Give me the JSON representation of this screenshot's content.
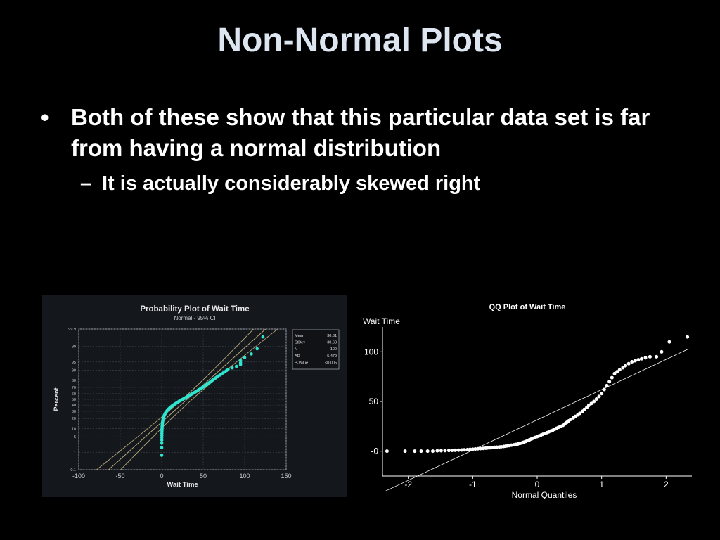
{
  "slide": {
    "title": "Non-Normal Plots",
    "bullet_marker": "•",
    "sub_marker": "–",
    "bullet": "Both of these show that this particular data set is far from having a normal distribution",
    "sub_bullet": "It is actually considerably skewed right"
  },
  "colors": {
    "background": "#000000",
    "title": "#dde6f0",
    "prob_panel_bg": "#14171c",
    "prob_points": "#2ee6d0",
    "prob_ci_lines": "#b8a978",
    "qq_points": "#ffffff"
  },
  "chart_data": [
    {
      "type": "scatter",
      "title": "Probability Plot of Wait Time",
      "subtitle": "Normal - 95% CI",
      "xlabel": "Wait Time",
      "ylabel": "Percent",
      "xlim": [
        -100,
        150
      ],
      "x_ticks": [
        -100,
        -50,
        0,
        50,
        100,
        150
      ],
      "y_ticks": [
        "0.1",
        "1",
        "5",
        "10",
        "20",
        "30",
        "40",
        "50",
        "60",
        "70",
        "80",
        "90",
        "95",
        "99",
        "99.9"
      ],
      "y_scale": "normal-probability",
      "grid": true,
      "stats": {
        "rows": [
          [
            "Mean",
            "30.61"
          ],
          [
            "StDev",
            "30.60"
          ],
          [
            "N",
            "100"
          ],
          [
            "AD",
            "5.479"
          ],
          [
            "P-Value",
            "<0.005"
          ]
        ]
      },
      "fit_line": {
        "mean": 30.61,
        "stdev": 30.6
      },
      "points": [
        [
          0.0,
          0.7
        ],
        [
          0.0,
          1.7
        ],
        [
          0.1,
          2.7
        ],
        [
          0.1,
          3.7
        ],
        [
          0.1,
          4.7
        ],
        [
          0.2,
          5.7
        ],
        [
          0.2,
          6.7
        ],
        [
          0.3,
          7.7
        ],
        [
          0.3,
          8.7
        ],
        [
          0.4,
          9.7
        ],
        [
          0.5,
          10.7
        ],
        [
          0.5,
          11.7
        ],
        [
          0.6,
          12.7
        ],
        [
          0.8,
          13.7
        ],
        [
          0.9,
          14.7
        ],
        [
          1.0,
          15.7
        ],
        [
          1.2,
          16.7
        ],
        [
          1.4,
          17.7
        ],
        [
          1.6,
          18.7
        ],
        [
          1.8,
          19.7
        ],
        [
          2.1,
          20.7
        ],
        [
          2.4,
          21.7
        ],
        [
          2.7,
          22.7
        ],
        [
          3.0,
          23.7
        ],
        [
          3.4,
          24.7
        ],
        [
          3.8,
          25.7
        ],
        [
          4.2,
          26.7
        ],
        [
          4.7,
          27.7
        ],
        [
          5.2,
          28.7
        ],
        [
          5.8,
          29.7
        ],
        [
          6.4,
          30.7
        ],
        [
          7.0,
          31.7
        ],
        [
          7.7,
          32.7
        ],
        [
          8.4,
          33.7
        ],
        [
          9.2,
          34.7
        ],
        [
          10.0,
          35.7
        ],
        [
          10.8,
          36.7
        ],
        [
          11.7,
          37.7
        ],
        [
          12.6,
          38.7
        ],
        [
          13.6,
          39.7
        ],
        [
          14.6,
          40.7
        ],
        [
          15.6,
          41.7
        ],
        [
          16.7,
          42.7
        ],
        [
          17.8,
          43.7
        ],
        [
          18.9,
          44.7
        ],
        [
          20.0,
          45.7
        ],
        [
          21.2,
          46.7
        ],
        [
          22.4,
          47.7
        ],
        [
          23.6,
          48.7
        ],
        [
          24.8,
          49.7
        ],
        [
          26.0,
          50.7
        ],
        [
          27.2,
          51.7
        ],
        [
          28.4,
          52.7
        ],
        [
          29.6,
          53.7
        ],
        [
          30.8,
          54.7
        ],
        [
          32.0,
          55.7
        ],
        [
          33.2,
          56.7
        ],
        [
          34.4,
          57.7
        ],
        [
          35.6,
          58.7
        ],
        [
          36.8,
          59.7
        ],
        [
          38.0,
          60.7
        ],
        [
          39.2,
          61.7
        ],
        [
          40.4,
          62.7
        ],
        [
          41.6,
          63.7
        ],
        [
          42.8,
          64.7
        ],
        [
          44.0,
          65.7
        ],
        [
          45.2,
          66.7
        ],
        [
          46.4,
          67.7
        ],
        [
          47.6,
          68.7
        ],
        [
          48.8,
          69.7
        ],
        [
          50.0,
          70.7
        ],
        [
          51.2,
          71.7
        ],
        [
          52.4,
          72.7
        ],
        [
          53.6,
          73.7
        ],
        [
          54.8,
          74.7
        ],
        [
          56.0,
          75.7
        ],
        [
          57.2,
          76.7
        ],
        [
          58.4,
          77.7
        ],
        [
          59.6,
          78.7
        ],
        [
          60.8,
          79.7
        ],
        [
          62.0,
          80.7
        ],
        [
          63.5,
          81.7
        ],
        [
          65.0,
          82.7
        ],
        [
          66.5,
          83.7
        ],
        [
          68.0,
          84.7
        ],
        [
          70.0,
          85.7
        ],
        [
          72.0,
          86.7
        ],
        [
          74.0,
          87.7
        ],
        [
          76.0,
          88.7
        ],
        [
          78.0,
          89.7
        ],
        [
          80.0,
          90.7
        ],
        [
          85.0,
          91.7
        ],
        [
          90.0,
          92.7
        ],
        [
          95.0,
          93.7
        ],
        [
          95.0,
          94.7
        ],
        [
          95.0,
          95.7
        ],
        [
          100.0,
          96.7
        ],
        [
          108.0,
          97.7
        ],
        [
          115.0,
          98.7
        ],
        [
          122.0,
          99.7
        ]
      ]
    },
    {
      "type": "scatter",
      "title": "QQ Plot of Wait Time",
      "xlabel": "Normal Quantiles",
      "ylabel": "Wait Time",
      "xlim": [
        -2.4,
        2.4
      ],
      "ylim": [
        -25,
        125
      ],
      "x_ticks": [
        "-2",
        "-1",
        "0",
        "1",
        "2"
      ],
      "y_ticks": [
        "-0",
        "50",
        "100"
      ],
      "reference_line": [
        [
          -2.35,
          -40
        ],
        [
          2.35,
          103
        ]
      ],
      "points": [
        [
          -2.33,
          0.0
        ],
        [
          -2.05,
          0.0
        ],
        [
          -1.9,
          0.0
        ],
        [
          -1.8,
          0.0
        ],
        [
          -1.7,
          0.0
        ],
        [
          -1.62,
          0.0
        ],
        [
          -1.55,
          0.4
        ],
        [
          -1.49,
          0.5
        ],
        [
          -1.43,
          0.6
        ],
        [
          -1.37,
          0.7
        ],
        [
          -1.32,
          0.8
        ],
        [
          -1.27,
          0.9
        ],
        [
          -1.22,
          1.0
        ],
        [
          -1.17,
          1.2
        ],
        [
          -1.13,
          1.4
        ],
        [
          -1.08,
          1.6
        ],
        [
          -1.04,
          1.8
        ],
        [
          -1.0,
          2.0
        ],
        [
          -0.96,
          2.2
        ],
        [
          -0.92,
          2.4
        ],
        [
          -0.88,
          2.6
        ],
        [
          -0.84,
          2.8
        ],
        [
          -0.8,
          3.0
        ],
        [
          -0.77,
          3.2
        ],
        [
          -0.73,
          3.4
        ],
        [
          -0.7,
          3.6
        ],
        [
          -0.66,
          3.8
        ],
        [
          -0.63,
          4.0
        ],
        [
          -0.59,
          4.2
        ],
        [
          -0.56,
          4.4
        ],
        [
          -0.52,
          4.7
        ],
        [
          -0.49,
          5.0
        ],
        [
          -0.46,
          5.3
        ],
        [
          -0.43,
          5.6
        ],
        [
          -0.4,
          6.0
        ],
        [
          -0.36,
          6.4
        ],
        [
          -0.33,
          6.8
        ],
        [
          -0.3,
          7.2
        ],
        [
          -0.27,
          7.7
        ],
        [
          -0.24,
          8.2
        ],
        [
          -0.21,
          9.0
        ],
        [
          -0.18,
          9.8
        ],
        [
          -0.15,
          10.6
        ],
        [
          -0.12,
          11.4
        ],
        [
          -0.09,
          12.2
        ],
        [
          -0.06,
          13.0
        ],
        [
          -0.03,
          13.8
        ],
        [
          0.0,
          14.6
        ],
        [
          0.03,
          15.4
        ],
        [
          0.06,
          16.2
        ],
        [
          0.09,
          17.0
        ],
        [
          0.12,
          17.8
        ],
        [
          0.15,
          18.6
        ],
        [
          0.18,
          19.4
        ],
        [
          0.21,
          20.2
        ],
        [
          0.24,
          21.0
        ],
        [
          0.27,
          22.0
        ],
        [
          0.3,
          23.0
        ],
        [
          0.33,
          24.0
        ],
        [
          0.36,
          25.0
        ],
        [
          0.4,
          26.0
        ],
        [
          0.43,
          27.5
        ],
        [
          0.46,
          29.0
        ],
        [
          0.49,
          30.5
        ],
        [
          0.52,
          32.0
        ],
        [
          0.56,
          33.5
        ],
        [
          0.59,
          35.0
        ],
        [
          0.63,
          36.5
        ],
        [
          0.66,
          38.0
        ],
        [
          0.7,
          40.0
        ],
        [
          0.73,
          42.0
        ],
        [
          0.77,
          44.0
        ],
        [
          0.8,
          46.0
        ],
        [
          0.84,
          48.0
        ],
        [
          0.88,
          50.0
        ],
        [
          0.92,
          52.5
        ],
        [
          0.96,
          55.0
        ],
        [
          1.0,
          58.0
        ],
        [
          1.04,
          62.0
        ],
        [
          1.08,
          66.0
        ],
        [
          1.12,
          70.0
        ],
        [
          1.16,
          74.0
        ],
        [
          1.2,
          78.0
        ],
        [
          1.24,
          80.0
        ],
        [
          1.28,
          82.0
        ],
        [
          1.33,
          84.0
        ],
        [
          1.37,
          86.0
        ],
        [
          1.42,
          88.0
        ],
        [
          1.47,
          90.0
        ],
        [
          1.52,
          91.0
        ],
        [
          1.57,
          92.0
        ],
        [
          1.62,
          93.0
        ],
        [
          1.68,
          94.0
        ],
        [
          1.75,
          95.0
        ],
        [
          1.85,
          95.0
        ],
        [
          1.93,
          100.0
        ],
        [
          2.05,
          110.0
        ],
        [
          2.33,
          115.0
        ]
      ]
    }
  ]
}
